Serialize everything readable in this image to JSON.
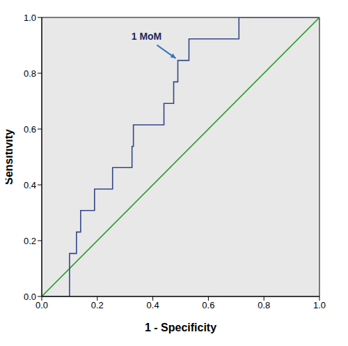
{
  "chart_data": {
    "type": "line",
    "x_label": "1 - Specificity",
    "y_label": "Sensitivity",
    "xlim": [
      0,
      1
    ],
    "ylim": [
      0,
      1
    ],
    "xticks": [
      {
        "value": 0,
        "label": "0.0"
      },
      0.2,
      0.4,
      0.6,
      0.8,
      {
        "value": 1,
        "label": "1.0"
      }
    ],
    "yticks": [
      {
        "value": 0,
        "label": "0.0"
      },
      0.2,
      0.4,
      0.6,
      0.8,
      {
        "value": 1,
        "label": "1.0"
      }
    ],
    "grid": false,
    "series": [
      {
        "color": "#2ca02c",
        "x": [
          0,
          1
        ],
        "values": [
          0,
          1
        ]
      },
      {
        "color": "#34468a",
        "x": [
          0,
          0.1,
          0.1,
          0.125,
          0.125,
          0.14,
          0.14,
          0.19,
          0.19,
          0.255,
          0.255,
          0.325,
          0.325,
          0.33,
          0.33,
          0.44,
          0.44,
          0.475,
          0.475,
          0.49,
          0.49,
          0.53,
          0.53,
          0.71,
          0.71,
          1
        ],
        "values": [
          0,
          0,
          0.154,
          0.154,
          0.231,
          0.231,
          0.308,
          0.308,
          0.385,
          0.385,
          0.462,
          0.462,
          0.538,
          0.538,
          0.615,
          0.615,
          0.692,
          0.692,
          0.769,
          0.769,
          0.846,
          0.846,
          0.923,
          0.923,
          1,
          1
        ]
      }
    ],
    "annotations": [
      {
        "text": "1 MoM",
        "x": 0.49,
        "y": 0.846
      }
    ]
  }
}
